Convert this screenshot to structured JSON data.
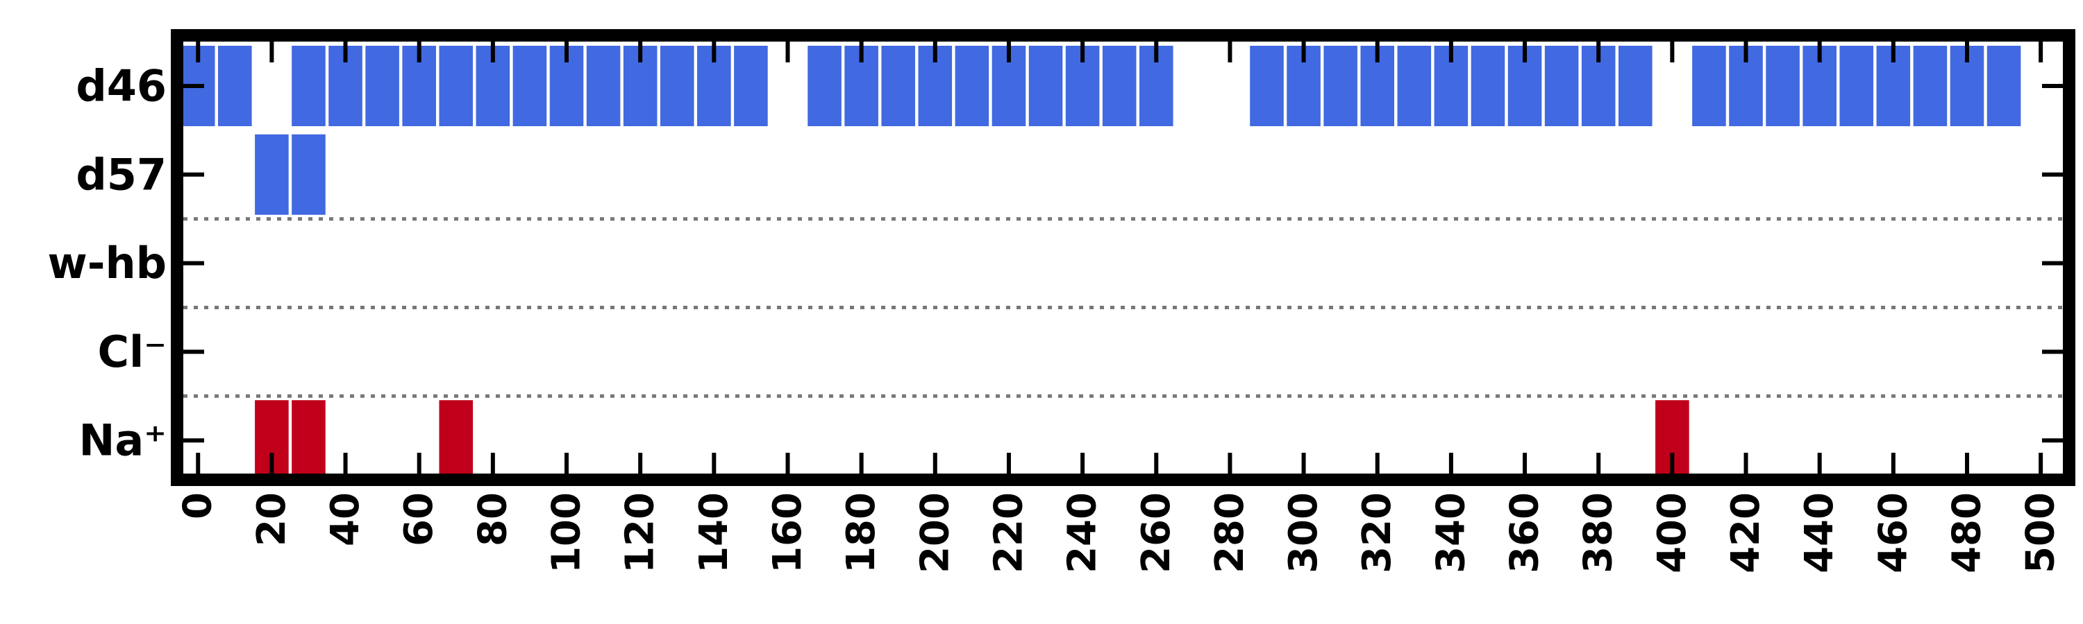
{
  "chart_data": {
    "type": "bar",
    "title": "",
    "xlabel": "",
    "ylabel": "",
    "xlim": [
      -4,
      506
    ],
    "x_ticks": [
      "0",
      "20",
      "40",
      "60",
      "80",
      "100",
      "120",
      "140",
      "160",
      "180",
      "200",
      "220",
      "240",
      "260",
      "280",
      "300",
      "320",
      "340",
      "360",
      "380",
      "400",
      "420",
      "440",
      "460",
      "480",
      "500"
    ],
    "bin_width": 10,
    "rows": [
      {
        "label": "d46",
        "color": "#4169e1",
        "x": [
          0,
          10,
          30,
          40,
          50,
          60,
          70,
          80,
          90,
          100,
          110,
          120,
          130,
          140,
          150,
          170,
          180,
          190,
          200,
          210,
          220,
          230,
          240,
          250,
          260,
          290,
          300,
          310,
          320,
          330,
          340,
          350,
          360,
          370,
          380,
          390,
          410,
          420,
          430,
          440,
          450,
          460,
          470,
          480,
          490
        ]
      },
      {
        "label": "d57",
        "color": "#4169e1",
        "x": [
          20,
          30
        ]
      },
      {
        "label": "w-hb",
        "color": "#4169e1",
        "x": []
      },
      {
        "label": "Cl⁻",
        "color": "#c0001a",
        "x": []
      },
      {
        "label": "Na⁺",
        "color": "#c0001a",
        "x": [
          20,
          30,
          70,
          400
        ]
      }
    ],
    "separators_after_rows": [
      "d57",
      "w-hb",
      "Cl⁻"
    ],
    "grid": false,
    "legend": "none"
  }
}
